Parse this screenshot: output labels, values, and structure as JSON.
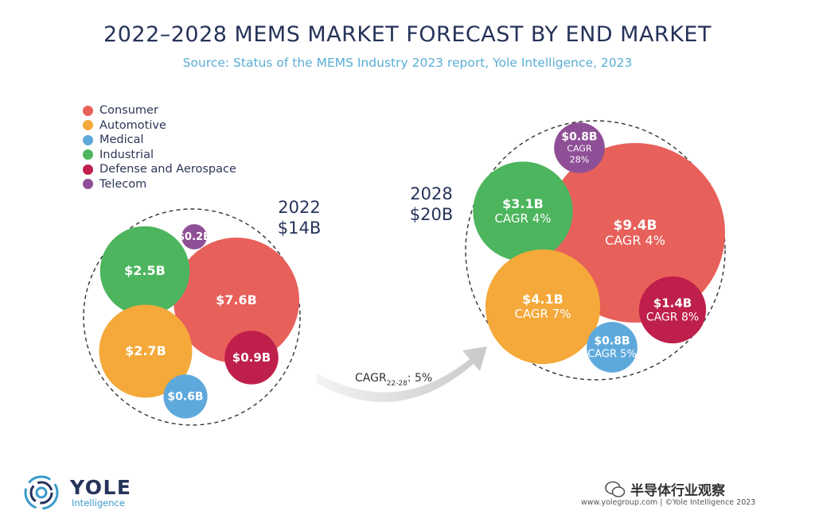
{
  "header": {
    "title": "2022–2028 MEMS MARKET FORECAST BY END MARKET",
    "subtitle": "Source: Status of the MEMS Industry 2023 report, Yole Intelligence, 2023"
  },
  "chart_data": {
    "type": "bubble",
    "legend": [
      {
        "name": "Consumer",
        "color": "#e8605a"
      },
      {
        "name": "Automotive",
        "color": "#f4a93a"
      },
      {
        "name": "Medical",
        "color": "#5ea9dc"
      },
      {
        "name": "Industrial",
        "color": "#4db55e"
      },
      {
        "name": "Defense and Aerospace",
        "color": "#bf1f4b"
      },
      {
        "name": "Telecom",
        "color": "#8f4f96"
      }
    ],
    "groups": [
      {
        "year": "2022",
        "total": "$14B",
        "bubbles": [
          {
            "segment": "Consumer",
            "value": 7.6,
            "label": "$7.6B",
            "cagr": ""
          },
          {
            "segment": "Automotive",
            "value": 2.7,
            "label": "$2.7B",
            "cagr": ""
          },
          {
            "segment": "Industrial",
            "value": 2.5,
            "label": "$2.5B",
            "cagr": ""
          },
          {
            "segment": "Defense and Aerospace",
            "value": 0.9,
            "label": "$0.9B",
            "cagr": ""
          },
          {
            "segment": "Medical",
            "value": 0.6,
            "label": "$0.6B",
            "cagr": ""
          },
          {
            "segment": "Telecom",
            "value": 0.2,
            "label": "$0.2B",
            "cagr": ""
          }
        ]
      },
      {
        "year": "2028",
        "total": "$20B",
        "bubbles": [
          {
            "segment": "Consumer",
            "value": 9.4,
            "label": "$9.4B",
            "cagr": "CAGR 4%"
          },
          {
            "segment": "Automotive",
            "value": 4.1,
            "label": "$4.1B",
            "cagr": "CAGR 7%"
          },
          {
            "segment": "Industrial",
            "value": 3.1,
            "label": "$3.1B",
            "cagr": "CAGR 4%"
          },
          {
            "segment": "Defense and Aerospace",
            "value": 1.4,
            "label": "$1.4B",
            "cagr": "CAGR 8%"
          },
          {
            "segment": "Medical",
            "value": 0.8,
            "label": "$0.8B",
            "cagr": "CAGR 5%"
          },
          {
            "segment": "Telecom",
            "value": 0.8,
            "label": "$0.8B",
            "cagr": "CAGR\n28%"
          }
        ]
      }
    ],
    "overall_cagr": {
      "prefix": "CAGR",
      "subscript": "22-28",
      "suffix": ": 5%"
    }
  },
  "branding": {
    "logo_brand": "YOLE",
    "logo_sub": "Intelligence",
    "watermark": "半导体行业观察",
    "footer": "www.yolegroup.com | ©Yole Intelligence 2023"
  }
}
